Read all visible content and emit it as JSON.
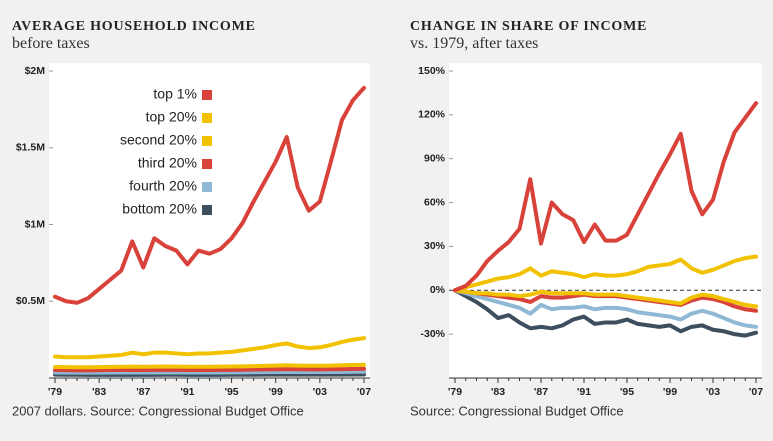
{
  "chart_data": [
    {
      "type": "line",
      "title": "AVERAGE HOUSEHOLD INCOME",
      "subtitle": "before taxes",
      "note": "2007 dollars. Source: Congressional Budget Office",
      "categories": [
        "'79",
        null,
        null,
        null,
        "'83",
        null,
        null,
        null,
        "'87",
        null,
        null,
        null,
        "'91",
        null,
        null,
        null,
        "'95",
        null,
        null,
        null,
        "'99",
        null,
        null,
        null,
        "'03",
        null,
        null,
        null,
        "'07"
      ],
      "ylim": [
        0,
        2000000
      ],
      "yticks": [
        {
          "value": 500000,
          "label": "$0.5M"
        },
        {
          "value": 1000000,
          "label": "$1M"
        },
        {
          "value": 1500000,
          "label": "$1.5M"
        },
        {
          "value": 2000000,
          "label": "$2M"
        }
      ],
      "legend": "upper left",
      "series": [
        {
          "name": "top 1%",
          "color": "#d9423a",
          "values": [
            530000,
            500000,
            490000,
            520000,
            580000,
            640000,
            700000,
            890000,
            720000,
            910000,
            860000,
            830000,
            740000,
            830000,
            810000,
            840000,
            910000,
            1010000,
            1150000,
            1280000,
            1410000,
            1570000,
            1240000,
            1090000,
            1150000,
            1410000,
            1680000,
            1810000,
            1890000
          ]
        },
        {
          "name": "top 20%",
          "color": "#f2c200",
          "values": [
            140000,
            135000,
            135000,
            135000,
            140000,
            145000,
            150000,
            165000,
            155000,
            165000,
            165000,
            160000,
            155000,
            160000,
            160000,
            165000,
            170000,
            180000,
            190000,
            200000,
            215000,
            225000,
            205000,
            195000,
            200000,
            215000,
            235000,
            250000,
            260000
          ]
        },
        {
          "name": "second 20%",
          "color": "#f2c200",
          "values": [
            72000,
            71000,
            70000,
            70000,
            71000,
            72000,
            73000,
            74000,
            73000,
            74000,
            75000,
            74000,
            73000,
            73000,
            73000,
            74000,
            75000,
            76000,
            77000,
            79000,
            81000,
            83000,
            81000,
            80000,
            80000,
            81000,
            83000,
            85000,
            86000
          ]
        },
        {
          "name": "third 20%",
          "color": "#d9423a",
          "values": [
            52000,
            51000,
            50000,
            50000,
            51000,
            52000,
            52000,
            53000,
            52000,
            53000,
            53000,
            53000,
            52000,
            52000,
            52000,
            53000,
            53000,
            54000,
            55000,
            56000,
            57000,
            58000,
            57000,
            56000,
            56000,
            57000,
            58000,
            59000,
            60000
          ]
        },
        {
          "name": "fourth 20%",
          "color": "#8fb8d4",
          "values": [
            36000,
            35000,
            35000,
            35000,
            35000,
            36000,
            36000,
            36000,
            36000,
            36000,
            37000,
            36000,
            36000,
            36000,
            36000,
            36000,
            37000,
            37000,
            38000,
            38000,
            39000,
            40000,
            39000,
            39000,
            39000,
            39000,
            40000,
            41000,
            41000
          ]
        },
        {
          "name": "bottom 20%",
          "color": "#3d4f5e",
          "values": [
            22000,
            21000,
            21000,
            20000,
            20000,
            20000,
            20000,
            20000,
            20000,
            20000,
            21000,
            21000,
            20000,
            20000,
            20000,
            20000,
            21000,
            21000,
            21000,
            22000,
            22000,
            23000,
            22000,
            22000,
            22000,
            22000,
            22000,
            23000,
            23000
          ]
        }
      ]
    },
    {
      "type": "line",
      "title": "CHANGE IN SHARE OF INCOME",
      "subtitle": "vs. 1979, after taxes",
      "note": "Source: Congressional Budget Office",
      "categories": [
        "'79",
        null,
        null,
        null,
        "'83",
        null,
        null,
        null,
        "'87",
        null,
        null,
        null,
        "'91",
        null,
        null,
        null,
        "'95",
        null,
        null,
        null,
        "'99",
        null,
        null,
        null,
        "'03",
        null,
        null,
        null,
        "'07"
      ],
      "ylim": [
        -60,
        150
      ],
      "yticks": [
        {
          "value": -30,
          "label": "-30%"
        },
        {
          "value": 0,
          "label": "0%"
        },
        {
          "value": 30,
          "label": "30%"
        },
        {
          "value": 60,
          "label": "60%"
        },
        {
          "value": 90,
          "label": "90%"
        },
        {
          "value": 120,
          "label": "120%"
        },
        {
          "value": 150,
          "label": "150%"
        }
      ],
      "zero_line": "dashed",
      "series": [
        {
          "color": "#d9423a",
          "values": [
            0,
            3,
            10,
            20,
            27,
            33,
            42,
            76,
            32,
            60,
            52,
            48,
            33,
            45,
            34,
            34,
            38,
            52,
            66,
            80,
            93,
            107,
            68,
            52,
            62,
            88,
            108,
            118,
            128
          ]
        },
        {
          "color": "#f2c200",
          "values": [
            0,
            2,
            4,
            6,
            8,
            9,
            11,
            15,
            10,
            13,
            12,
            11,
            9,
            11,
            10,
            10,
            11,
            13,
            16,
            17,
            18,
            21,
            15,
            12,
            14,
            17,
            20,
            22,
            23
          ]
        },
        {
          "color": "#f2c200",
          "values": [
            0,
            -1,
            -2,
            -2,
            -3,
            -3,
            -4,
            -3,
            -1,
            -2,
            -2,
            -2,
            -2,
            -3,
            -3,
            -3,
            -4,
            -5,
            -6,
            -7,
            -8,
            -9,
            -5,
            -3,
            -4,
            -6,
            -8,
            -10,
            -11
          ]
        },
        {
          "color": "#d9423a",
          "values": [
            0,
            -1,
            -2,
            -3,
            -4,
            -5,
            -6,
            -8,
            -4,
            -5,
            -5,
            -4,
            -3,
            -4,
            -4,
            -4,
            -5,
            -6,
            -7,
            -8,
            -9,
            -10,
            -7,
            -5,
            -6,
            -8,
            -11,
            -13,
            -14
          ]
        },
        {
          "color": "#8fb8d4",
          "values": [
            0,
            -2,
            -4,
            -6,
            -8,
            -10,
            -12,
            -16,
            -10,
            -13,
            -12,
            -12,
            -11,
            -13,
            -12,
            -12,
            -13,
            -15,
            -16,
            -17,
            -18,
            -20,
            -16,
            -14,
            -16,
            -19,
            -22,
            -24,
            -25
          ]
        },
        {
          "color": "#3d4f5e",
          "values": [
            0,
            -4,
            -8,
            -13,
            -19,
            -17,
            -22,
            -26,
            -25,
            -26,
            -24,
            -20,
            -18,
            -23,
            -22,
            -22,
            -20,
            -23,
            -24,
            -25,
            -24,
            -28,
            -25,
            -24,
            -27,
            -28,
            -30,
            -31,
            -29
          ]
        }
      ]
    }
  ]
}
